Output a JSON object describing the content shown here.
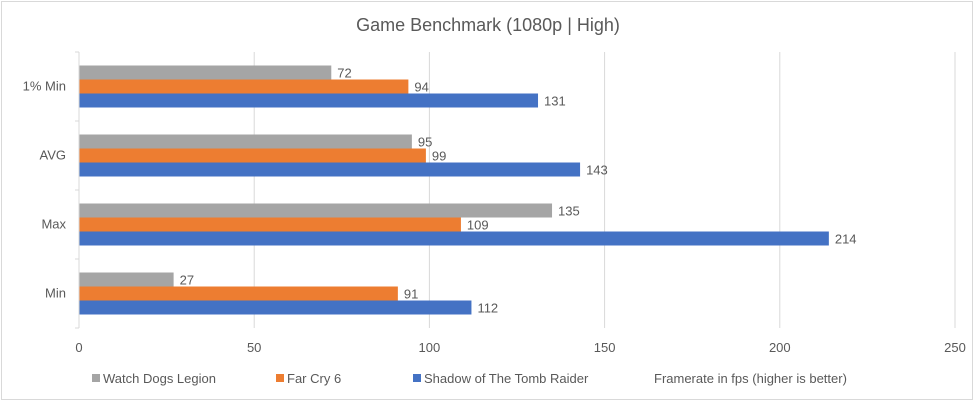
{
  "chart_data": {
    "type": "bar",
    "orientation": "horizontal",
    "title": "Game Benchmark (1080p | High)",
    "xlabel": "Framerate in fps (higher is better)",
    "ylabel": "",
    "categories": [
      "1% Min",
      "AVG",
      "Max",
      "Min"
    ],
    "series": [
      {
        "name": "Watch Dogs Legion",
        "color": "#a5a5a5",
        "values": [
          72,
          95,
          135,
          27
        ]
      },
      {
        "name": "Far Cry 6",
        "color": "#ed7d31",
        "values": [
          94,
          99,
          109,
          91
        ]
      },
      {
        "name": "Shadow of The Tomb Raider",
        "color": "#4472c4",
        "values": [
          131,
          143,
          214,
          112
        ]
      }
    ],
    "xlim": [
      0,
      250
    ],
    "xticks": [
      "0",
      "50",
      "100",
      "150",
      "200",
      "250"
    ],
    "grid": true,
    "legend_position": "bottom"
  }
}
